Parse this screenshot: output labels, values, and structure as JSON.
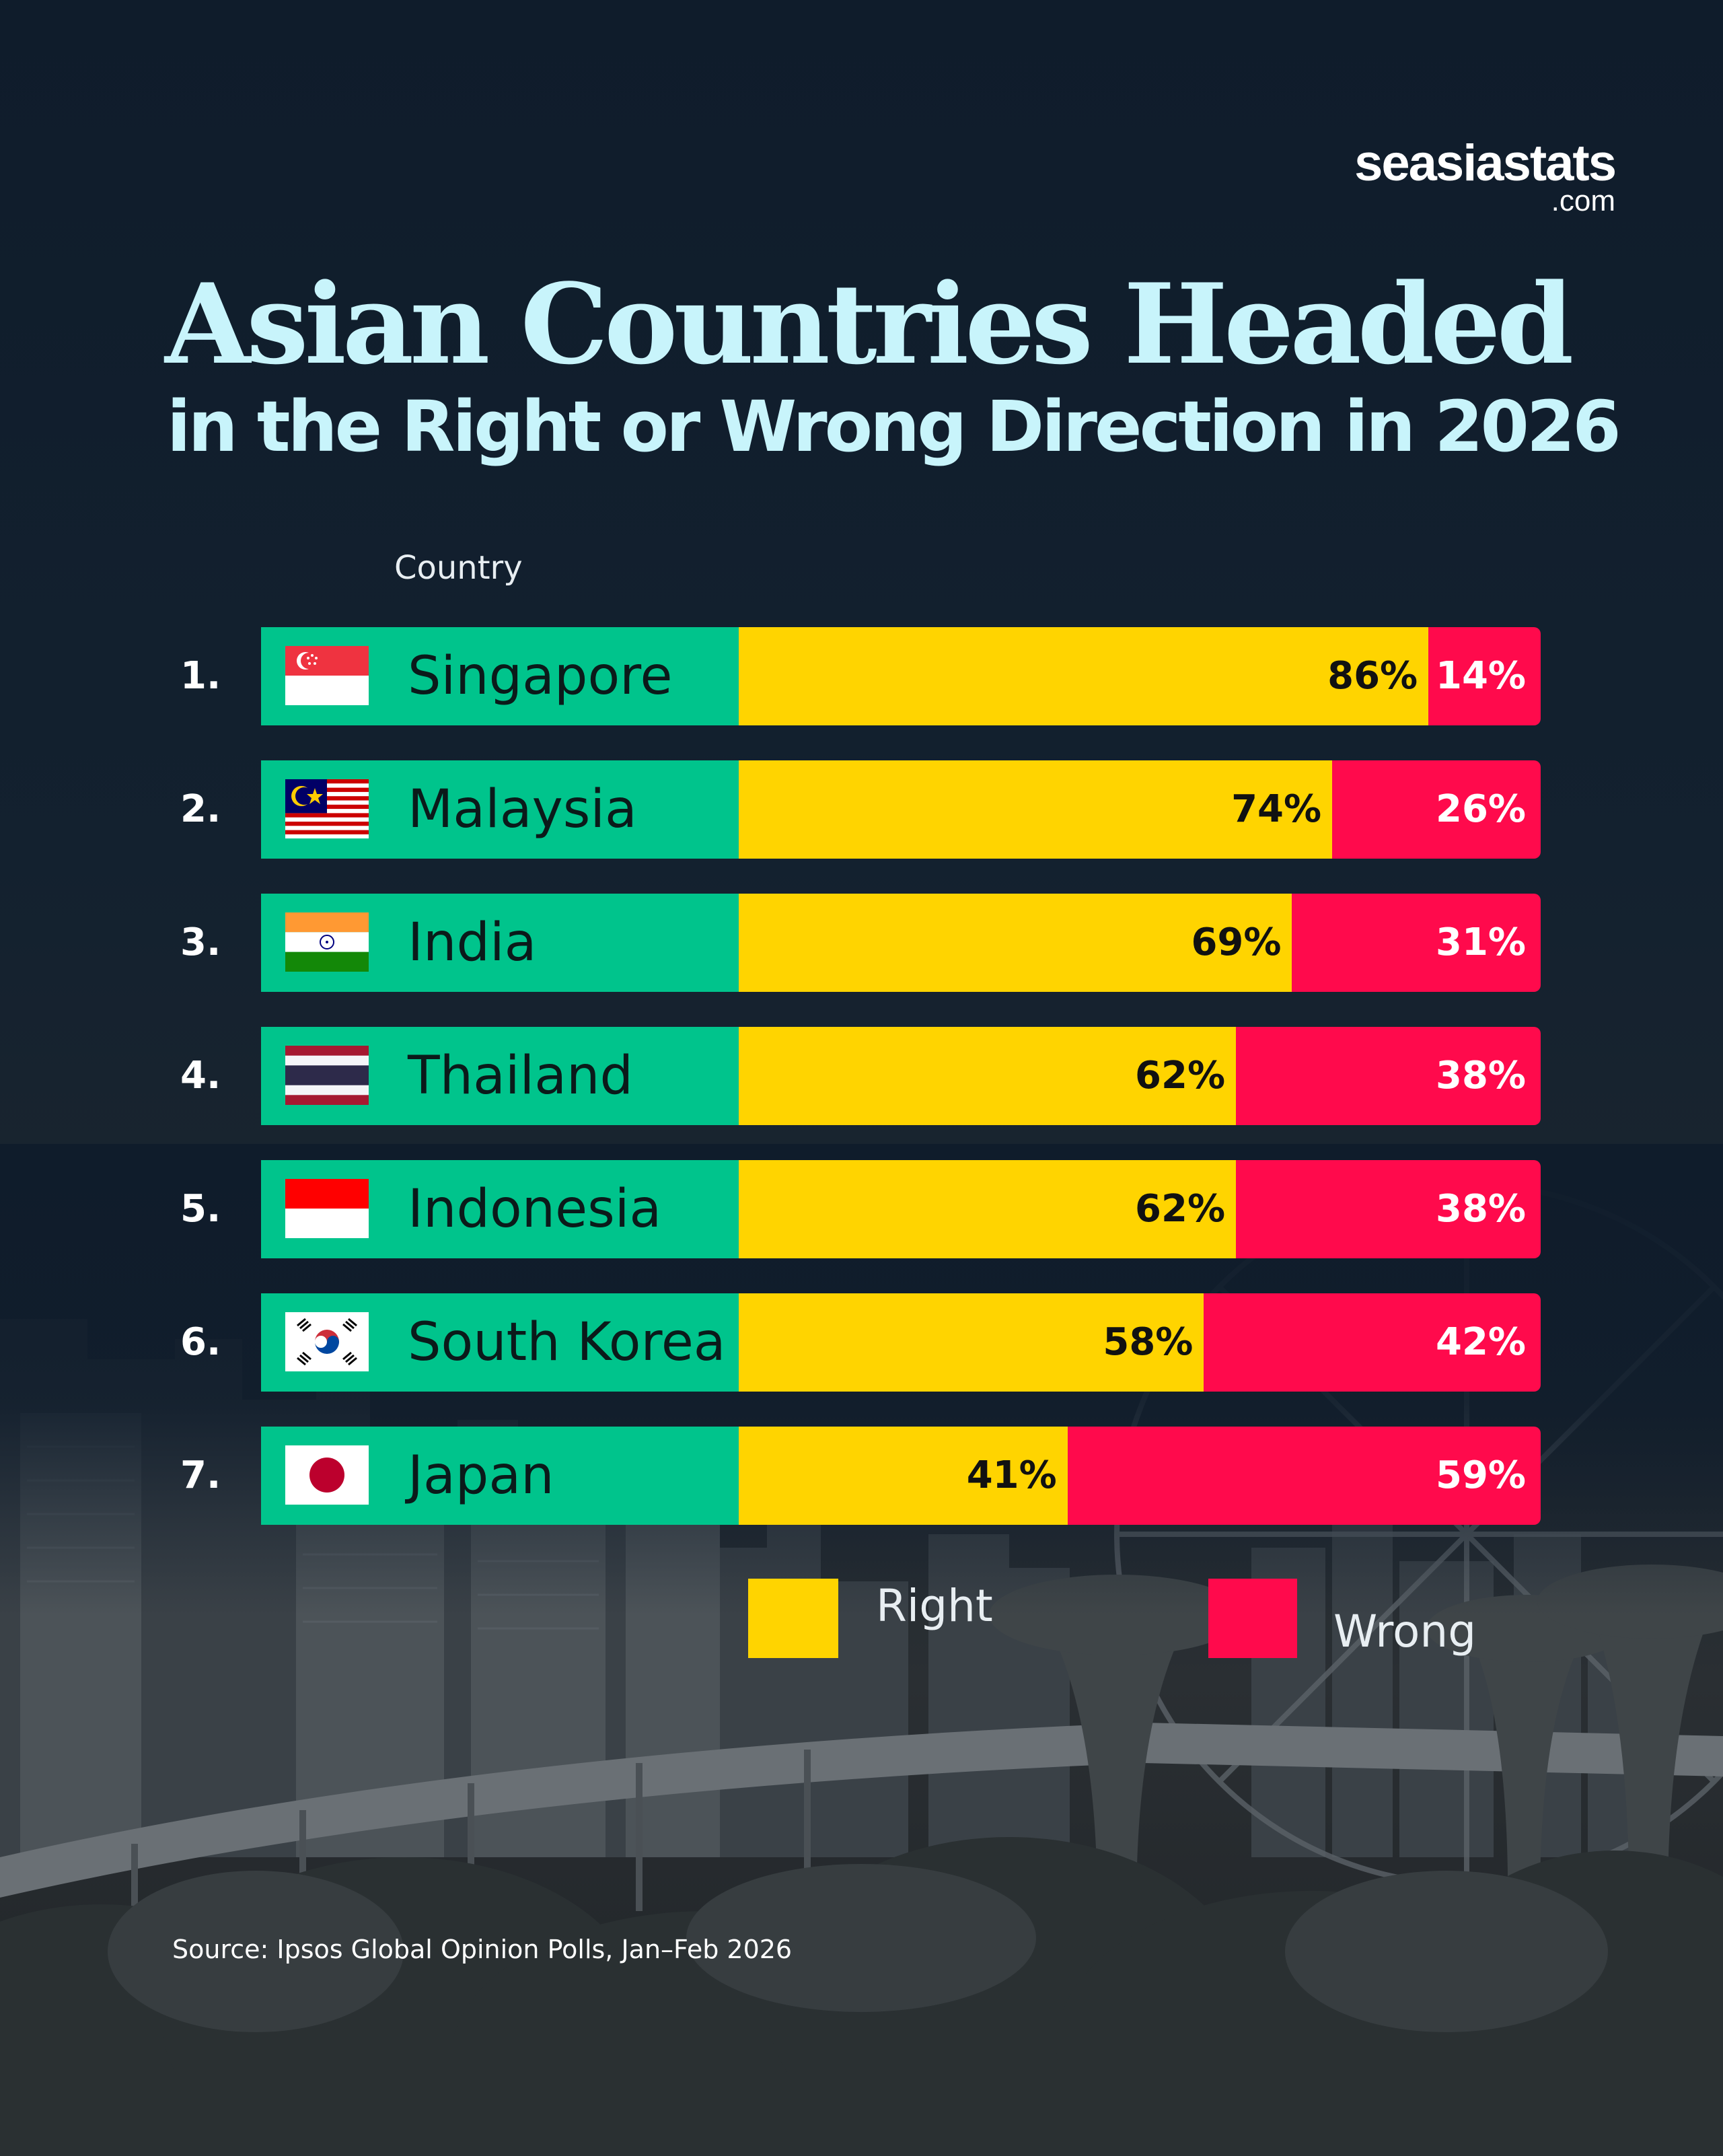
{
  "brand": {
    "name": "seasiastats",
    "suffix": ".com"
  },
  "title": {
    "line1": "Asian Countries Headed",
    "line2": "in the Right or Wrong Direction in 2026"
  },
  "column_header": "Country",
  "colors": {
    "country_band": "#00c48c",
    "right": "#ffd400",
    "wrong": "#ff0a4c",
    "title": "#c8f4fb"
  },
  "legend": {
    "right_label": "Right",
    "wrong_label": "Wrong"
  },
  "source": "Source: Ipsos Global Opinion Polls, Jan–Feb 2026",
  "chart_data": {
    "type": "bar",
    "orientation": "horizontal",
    "stacked": true,
    "title": "Asian Countries Headed in the Right or Wrong Direction in 2026",
    "categories": [
      "Singapore",
      "Malaysia",
      "India",
      "Thailand",
      "Indonesia",
      "South Korea",
      "Japan"
    ],
    "ranks": [
      "1.",
      "2.",
      "3.",
      "4.",
      "5.",
      "6.",
      "7."
    ],
    "flag_icons": [
      "singapore-flag-icon",
      "malaysia-flag-icon",
      "india-flag-icon",
      "thailand-flag-icon",
      "indonesia-flag-icon",
      "south-korea-flag-icon",
      "japan-flag-icon"
    ],
    "series": [
      {
        "name": "Right",
        "values": [
          86,
          74,
          69,
          62,
          62,
          58,
          41
        ],
        "labels": [
          "86%",
          "74%",
          "69%",
          "62%",
          "62%",
          "58%",
          "41%"
        ]
      },
      {
        "name": "Wrong",
        "values": [
          14,
          26,
          31,
          38,
          38,
          42,
          59
        ],
        "labels": [
          "14%",
          "26%",
          "31%",
          "38%",
          "38%",
          "42%",
          "59%"
        ]
      }
    ],
    "xlim": [
      0,
      100
    ],
    "legend_position": "bottom-right",
    "grid": false
  }
}
